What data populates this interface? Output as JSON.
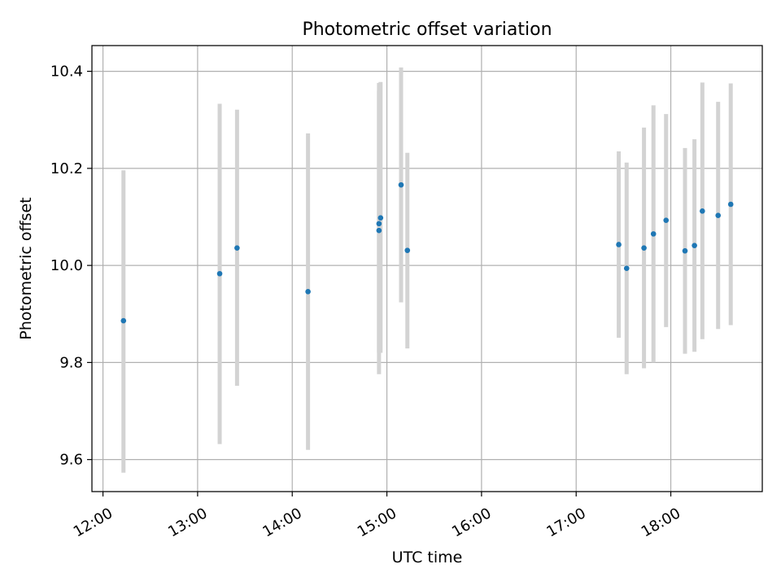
{
  "chart_data": {
    "type": "scatter",
    "title": "Photometric offset variation",
    "xlabel": "UTC time",
    "ylabel": "Photometric offset",
    "grid": true,
    "x_unit": "hours UTC",
    "x_tick_labels": [
      "12:00",
      "13:00",
      "14:00",
      "15:00",
      "16:00",
      "17:00",
      "18:00"
    ],
    "y_tick_labels": [
      "9.6",
      "9.8",
      "10.0",
      "10.2",
      "10.4"
    ],
    "xlim": [
      "11:53",
      "18:58"
    ],
    "ylim": [
      9.534,
      10.453
    ],
    "colors": {
      "point": "#1f77b4",
      "errorbar": "#d3d3d3",
      "grid": "#b0b0b0"
    },
    "points": [
      {
        "x": "12:13",
        "y": 9.886,
        "ylow": 9.573,
        "yhigh": 10.196
      },
      {
        "x": "13:14",
        "y": 9.983,
        "ylow": 9.632,
        "yhigh": 10.333
      },
      {
        "x": "13:25",
        "y": 10.036,
        "ylow": 9.752,
        "yhigh": 10.321
      },
      {
        "x": "14:10",
        "y": 9.946,
        "ylow": 9.62,
        "yhigh": 10.272
      },
      {
        "x": "14:55",
        "y": 10.072,
        "ylow": 9.776,
        "yhigh": 10.376
      },
      {
        "x": "14:55",
        "y": 10.086,
        "ylow": 9.82,
        "yhigh": 10.36
      },
      {
        "x": "14:56",
        "y": 10.098,
        "ylow": 9.82,
        "yhigh": 10.378
      },
      {
        "x": "15:09",
        "y": 10.166,
        "ylow": 9.924,
        "yhigh": 10.408
      },
      {
        "x": "15:13",
        "y": 10.031,
        "ylow": 9.829,
        "yhigh": 10.232
      },
      {
        "x": "17:27",
        "y": 10.043,
        "ylow": 9.851,
        "yhigh": 10.235
      },
      {
        "x": "17:32",
        "y": 9.994,
        "ylow": 9.776,
        "yhigh": 10.212
      },
      {
        "x": "17:43",
        "y": 10.036,
        "ylow": 9.788,
        "yhigh": 10.284
      },
      {
        "x": "17:49",
        "y": 10.065,
        "ylow": 9.8,
        "yhigh": 10.33
      },
      {
        "x": "17:57",
        "y": 10.093,
        "ylow": 9.873,
        "yhigh": 10.312
      },
      {
        "x": "18:09",
        "y": 10.03,
        "ylow": 9.818,
        "yhigh": 10.242
      },
      {
        "x": "18:15",
        "y": 10.041,
        "ylow": 9.822,
        "yhigh": 10.26
      },
      {
        "x": "18:20",
        "y": 10.112,
        "ylow": 9.848,
        "yhigh": 10.377
      },
      {
        "x": "18:30",
        "y": 10.103,
        "ylow": 9.869,
        "yhigh": 10.337
      },
      {
        "x": "18:38",
        "y": 10.126,
        "ylow": 9.877,
        "yhigh": 10.375
      }
    ]
  }
}
